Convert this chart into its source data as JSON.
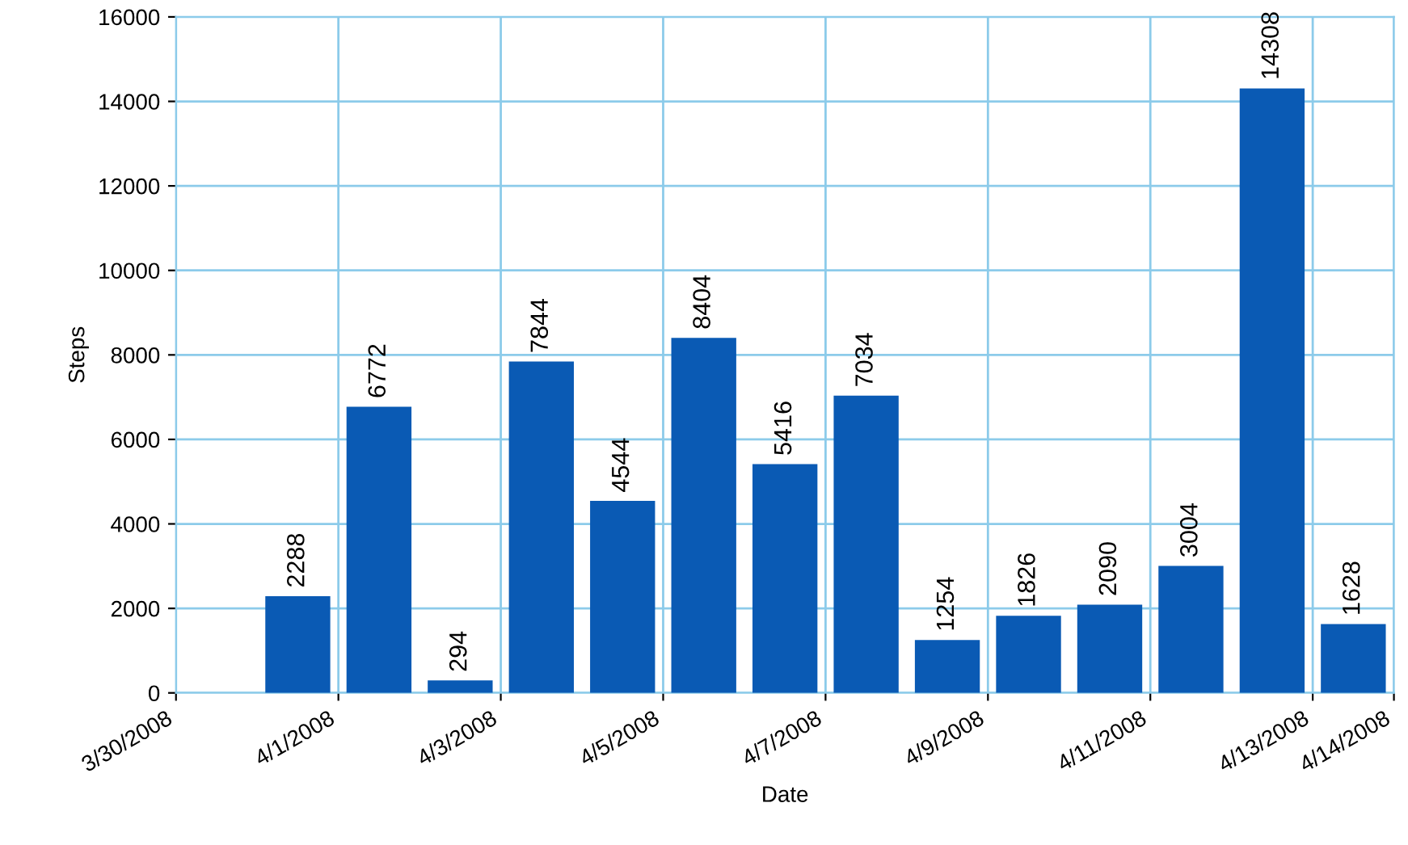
{
  "chart_data": {
    "type": "bar",
    "xlabel": "Date",
    "ylabel": "Steps",
    "x": [
      "2008-03-31T12:00",
      "2008-04-01T12:00",
      "2008-04-02T12:00",
      "2008-04-03T12:00",
      "2008-04-04T12:00",
      "2008-04-05T12:00",
      "2008-04-06T12:00",
      "2008-04-07T12:00",
      "2008-04-08T12:00",
      "2008-04-09T12:00",
      "2008-04-10T12:00",
      "2008-04-11T12:00",
      "2008-04-12T12:00",
      "2008-04-13T12:00"
    ],
    "values": [
      2288,
      6772,
      294,
      7844,
      4544,
      8404,
      5416,
      7034,
      1254,
      1826,
      2090,
      3004,
      14308,
      1628
    ],
    "color": "#0a5ab4",
    "data_labels": true,
    "xlim": [
      "2008-03-30",
      "2008-04-14"
    ],
    "xticks": [
      {
        "value": "2008-03-30",
        "label": "3/30/2008"
      },
      {
        "value": "2008-04-01",
        "label": "4/1/2008"
      },
      {
        "value": "2008-04-03",
        "label": "4/3/2008"
      },
      {
        "value": "2008-04-05",
        "label": "4/5/2008"
      },
      {
        "value": "2008-04-07",
        "label": "4/7/2008"
      },
      {
        "value": "2008-04-09",
        "label": "4/9/2008"
      },
      {
        "value": "2008-04-11",
        "label": "4/11/2008"
      },
      {
        "value": "2008-04-13",
        "label": "4/13/2008"
      },
      {
        "value": "2008-04-14",
        "label": "4/14/2008"
      }
    ],
    "ylim": [
      0,
      16000
    ],
    "yticks": [
      0,
      2000,
      4000,
      6000,
      8000,
      10000,
      12000,
      14000,
      16000
    ],
    "grid": true
  }
}
